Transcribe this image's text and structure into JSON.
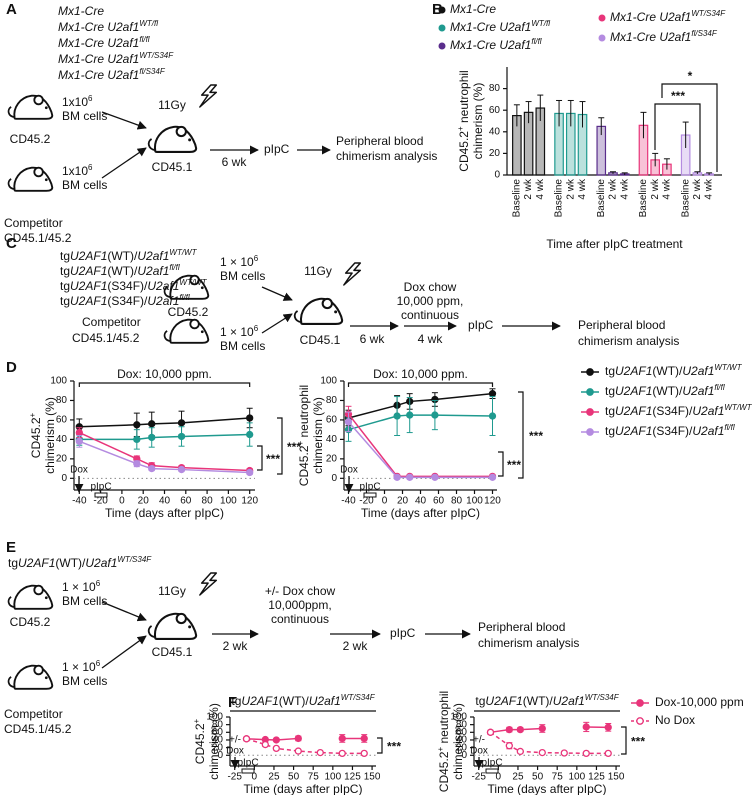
{
  "panel_labels": [
    "A",
    "B",
    "C",
    "D",
    "E",
    "F"
  ],
  "panel_a": {
    "genotypes": [
      [
        {
          "i": "Mx1-Cre"
        }
      ],
      [
        {
          "i": "Mx1-Cre U2af1"
        },
        {
          "isup": "WT/fl"
        }
      ],
      [
        {
          "i": "Mx1-Cre U2af1"
        },
        {
          "isup": "fl/fl"
        }
      ],
      [
        {
          "i": "Mx1-Cre U2af1"
        },
        {
          "isup": "WT/S34F"
        }
      ],
      [
        {
          "i": "Mx1-Cre U2af1"
        },
        {
          "isup": "fl/S34F"
        }
      ]
    ],
    "donor": "CD45.2",
    "cells": [
      [
        "1x10",
        {
          "sup": "6"
        }
      ],
      "BM cells"
    ],
    "competitor": [
      "Competitor",
      "CD45.1/45.2"
    ],
    "irradiation": "11Gy",
    "recipient": "CD45.1",
    "interval": "6 wk",
    "treatment": "pIpC",
    "readout": [
      "Peripheral blood",
      "chimerism analysis"
    ]
  },
  "panel_c": {
    "genotypes": [
      [
        "tg",
        {
          "i": "U2AF1"
        },
        "(WT)/",
        {
          "i": "U2af1"
        },
        {
          "isup": "WT/WT"
        }
      ],
      [
        "tg",
        {
          "i": "U2AF1"
        },
        "(WT)/",
        {
          "i": "U2af1"
        },
        {
          "isup": "fl/fl"
        }
      ],
      [
        "tg",
        {
          "i": "U2AF1"
        },
        "(S34F)/",
        {
          "i": "U2af1"
        },
        {
          "isup": "WT/WT"
        }
      ],
      [
        "tg",
        {
          "i": "U2AF1"
        },
        "(S34F)/",
        {
          "i": "U2af1"
        },
        {
          "isup": "fl/fl"
        }
      ]
    ],
    "donor": "CD45.2",
    "cells": [
      [
        "1 × 10",
        {
          "sup": "6"
        }
      ],
      "BM cells"
    ],
    "competitor": [
      "Competitor",
      "CD45.1/45.2"
    ],
    "irradiation": "11Gy",
    "recipient": "CD45.1",
    "intervals": [
      "6 wk",
      "4 wk"
    ],
    "diet": [
      "Dox chow",
      "10,000 ppm,",
      "continuous"
    ],
    "treatment": "pIpC",
    "readout": [
      "Peripheral blood",
      "chimerism analysis"
    ]
  },
  "panel_e": {
    "genotype": [
      "tg",
      {
        "i": "U2AF1"
      },
      "(WT)/",
      {
        "i": "U2af1"
      },
      {
        "isup": "WT/S34F"
      }
    ],
    "donor": "CD45.2",
    "cells": [
      [
        "1 × 10",
        {
          "sup": "6"
        }
      ],
      "BM cells"
    ],
    "competitor": [
      "Competitor",
      "CD45.1/45.2"
    ],
    "irradiation": "11Gy",
    "recipient": "CD45.1",
    "intervals": [
      "2 wk",
      "2 wk"
    ],
    "diet": [
      "+/- Dox chow",
      "10,000ppm,",
      "continuous"
    ],
    "treatment": "pIpC",
    "readout": [
      "Peripheral blood",
      "chimerism analysis"
    ]
  },
  "chart_data": [
    {
      "type": "bar",
      "y_label": [
        [
          "CD45.2",
          {
            "sup": "+"
          },
          " neutrophil"
        ],
        [
          "chimerism (%)"
        ]
      ],
      "x_label": "Time after pIpC treatment",
      "categories": [
        "Baseline",
        "2 wk",
        "4 wk"
      ],
      "ylim": [
        0,
        100
      ],
      "yticks": [
        0,
        20,
        40,
        60,
        80
      ],
      "series": [
        {
          "name": [
            {
              "i": "Mx1-Cre"
            }
          ],
          "color": "#111111",
          "values": [
            55,
            58,
            62
          ],
          "errors": [
            10,
            10,
            12
          ]
        },
        {
          "name": [
            {
              "i": "Mx1-Cre U2af1"
            },
            {
              "isup": "WT/fl"
            }
          ],
          "color": "#1f9a8f",
          "values": [
            57,
            57,
            56
          ],
          "errors": [
            12,
            12,
            12
          ]
        },
        {
          "name": [
            {
              "i": "Mx1-Cre U2af1"
            },
            {
              "isup": "fl/fl"
            }
          ],
          "color": "#5a2d8c",
          "values": [
            45,
            2,
            1
          ],
          "errors": [
            8,
            1,
            1
          ]
        },
        {
          "name": [
            {
              "i": "Mx1-Cre U2af1"
            },
            {
              "isup": "WT/S34F"
            }
          ],
          "color": "#e8357a",
          "values": [
            46,
            14,
            10
          ],
          "errors": [
            12,
            6,
            5
          ]
        },
        {
          "name": [
            {
              "i": "Mx1-Cre U2af1"
            },
            {
              "isup": "fl/S34F"
            }
          ],
          "color": "#b48be0",
          "values": [
            37,
            2,
            1
          ],
          "errors": [
            12,
            1,
            1
          ]
        }
      ],
      "significance": [
        "***",
        "*"
      ]
    },
    {
      "type": "line",
      "y_label": [
        [
          "CD45.2",
          {
            "sup": "+"
          }
        ],
        [
          "chimerism (%)"
        ]
      ],
      "x_label": "Time (days after pIpC)",
      "x": [
        -40,
        14,
        28,
        56,
        120
      ],
      "xlim": [
        -45,
        125
      ],
      "xticks": [
        -40,
        -20,
        0,
        20,
        40,
        60,
        80,
        100,
        120
      ],
      "ylim": [
        -12,
        100
      ],
      "yticks": [
        0,
        20,
        40,
        60,
        80,
        100
      ],
      "series": [
        {
          "color": "#111111",
          "marker": "filled",
          "values": [
            53,
            55,
            56,
            57,
            62
          ],
          "errors": [
            8,
            12,
            12,
            12,
            10
          ]
        },
        {
          "color": "#1f9a8f",
          "marker": "filled",
          "values": [
            40,
            40,
            42,
            43,
            45
          ],
          "errors": [
            6,
            10,
            10,
            10,
            12
          ]
        },
        {
          "color": "#e8357a",
          "marker": "filled",
          "values": [
            47,
            20,
            13,
            11,
            8
          ],
          "errors": [
            5,
            3,
            3,
            2,
            2
          ]
        },
        {
          "color": "#b48be0",
          "marker": "filled",
          "values": [
            38,
            15,
            10,
            9,
            6
          ],
          "errors": [
            6,
            3,
            2,
            2,
            2
          ]
        }
      ],
      "dox_label": "Dox: 10,000 ppm.",
      "dox_arrow": [
        "Dox"
      ],
      "pipc": "pIpC",
      "significance": [
        "***",
        "***"
      ]
    },
    {
      "type": "line",
      "y_label": [
        [
          "CD45.2",
          {
            "sup": "+"
          },
          " neutrophil"
        ],
        [
          "chimerism (%)"
        ]
      ],
      "x_label": "Time (days after pIpC)",
      "x": [
        -40,
        14,
        28,
        56,
        120
      ],
      "xlim": [
        -45,
        125
      ],
      "xticks": [
        -40,
        -20,
        0,
        20,
        40,
        60,
        80,
        100,
        120
      ],
      "ylim": [
        -12,
        100
      ],
      "yticks": [
        0,
        20,
        40,
        60,
        80,
        100
      ],
      "series": [
        {
          "name": [
            "tg",
            {
              "i": "U2AF1"
            },
            "(WT)/",
            {
              "i": "U2af1"
            },
            {
              "isup": "WT/WT"
            }
          ],
          "color": "#111111",
          "marker": "filled",
          "values": [
            62,
            75,
            79,
            81,
            87
          ],
          "errors": [
            8,
            10,
            8,
            7,
            5
          ]
        },
        {
          "name": [
            "tg",
            {
              "i": "U2AF1"
            },
            "(WT)/",
            {
              "i": "U2af1"
            },
            {
              "isup": "fl/fl"
            }
          ],
          "color": "#1f9a8f",
          "marker": "filled",
          "values": [
            50,
            64,
            65,
            65,
            64
          ],
          "errors": [
            12,
            20,
            18,
            15,
            20
          ]
        },
        {
          "name": [
            "tg",
            {
              "i": "U2AF1"
            },
            "(S34F)/",
            {
              "i": "U2af1"
            },
            {
              "isup": "WT/WT"
            }
          ],
          "color": "#e8357a",
          "marker": "filled",
          "values": [
            66,
            2,
            2,
            2,
            2
          ],
          "errors": [
            8,
            1,
            1,
            1,
            1
          ]
        },
        {
          "name": [
            "tg",
            {
              "i": "U2AF1"
            },
            "(S34F)/",
            {
              "i": "U2af1"
            },
            {
              "isup": "fl/fl"
            }
          ],
          "color": "#b48be0",
          "marker": "filled",
          "values": [
            58,
            1,
            1,
            1,
            1
          ],
          "errors": [
            10,
            1,
            1,
            1,
            1
          ]
        }
      ],
      "dox_label": "Dox: 10,000 ppm.",
      "dox_arrow": [
        "Dox"
      ],
      "pipc": "pIpC",
      "significance": [
        "***",
        "***"
      ]
    },
    {
      "type": "line",
      "title": [
        "tg",
        {
          "i": "U2AF1"
        },
        "(WT)/",
        {
          "i": "U2af1"
        },
        {
          "isup": "WT/S34F"
        }
      ],
      "y_label": [
        [
          "CD45.2",
          {
            "sup": "+"
          }
        ],
        [
          "chimerism (%)"
        ]
      ],
      "x_label": "Time (days after pIpC)",
      "x": [
        -10,
        14,
        28,
        56,
        84,
        112,
        140
      ],
      "xlim": [
        -31,
        155
      ],
      "xticks": [
        -25,
        0,
        25,
        50,
        75,
        100,
        125,
        150
      ],
      "ylim": [
        -28,
        100
      ],
      "yticks": [
        0,
        20,
        40,
        60,
        80,
        100
      ],
      "series": [
        {
          "color": "#e8357a",
          "marker": "filled",
          "values": [
            43,
            41,
            40,
            44,
            null,
            44,
            44
          ],
          "errors": [
            5,
            3,
            3,
            6,
            null,
            10,
            10
          ]
        },
        {
          "color": "#e8357a",
          "marker": "open",
          "values": [
            43,
            28,
            18,
            11,
            7,
            5,
            5
          ],
          "errors": [
            5,
            5,
            4,
            3,
            2,
            2,
            2
          ]
        }
      ],
      "dox_arrow": [
        "+/-",
        "Dox"
      ],
      "pipc": "pIpC",
      "significance": [
        "***"
      ]
    },
    {
      "type": "line",
      "title": [
        "tg",
        {
          "i": "U2AF1"
        },
        "(WT)/",
        {
          "i": "U2af1"
        },
        {
          "isup": "WT/S34F"
        }
      ],
      "y_label": [
        [
          "CD45.2",
          {
            "sup": "+"
          },
          " neutrophil"
        ],
        [
          "chimerism (%)"
        ]
      ],
      "x_label": "Time (days after pIpC)",
      "x": [
        -10,
        14,
        28,
        56,
        84,
        112,
        140
      ],
      "xlim": [
        -31,
        155
      ],
      "xticks": [
        -25,
        0,
        25,
        50,
        75,
        100,
        125,
        150
      ],
      "ylim": [
        -28,
        100
      ],
      "yticks": [
        0,
        20,
        40,
        60,
        80,
        100
      ],
      "series": [
        {
          "name": "Dox-10,000 ppm",
          "color": "#e8357a",
          "marker": "filled",
          "values": [
            60,
            67,
            67,
            70,
            null,
            74,
            73
          ],
          "errors": [
            5,
            6,
            5,
            10,
            null,
            12,
            10
          ]
        },
        {
          "name": "No Dox",
          "color": "#e8357a",
          "marker": "open",
          "values": [
            60,
            25,
            10,
            7,
            6,
            5,
            5
          ],
          "errors": [
            5,
            8,
            4,
            3,
            2,
            2,
            2
          ]
        }
      ],
      "dox_arrow": [
        "+/-",
        "Dox"
      ],
      "pipc": "pIpC",
      "significance": [
        "***"
      ]
    }
  ]
}
